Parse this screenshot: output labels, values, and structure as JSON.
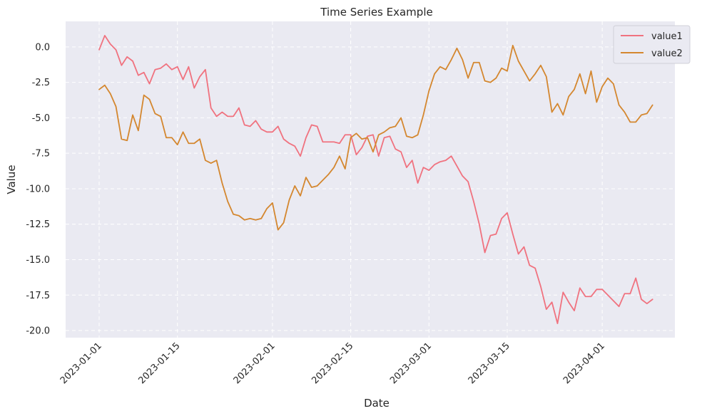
{
  "chart_data": {
    "type": "line",
    "title": "Time Series Example",
    "xlabel": "Date",
    "ylabel": "Value",
    "x_start": "2023-01-01",
    "x_end": "2023-04-09",
    "xlim": [
      "2022-12-26",
      "2023-04-14"
    ],
    "ylim": [
      -20.5,
      1.8
    ],
    "x_ticks": [
      "2023-01-01",
      "2023-01-15",
      "2023-02-01",
      "2023-02-15",
      "2023-03-01",
      "2023-03-15",
      "2023-04-01"
    ],
    "y_ticks": [
      0.0,
      -2.5,
      -5.0,
      -7.5,
      -10.0,
      -12.5,
      -15.0,
      -17.5,
      -20.0
    ],
    "y_tick_labels": [
      "0.0",
      "-2.5",
      "-5.0",
      "-7.5",
      "-10.0",
      "-12.5",
      "-15.0",
      "-17.5",
      "-20.0"
    ],
    "grid": true,
    "grid_style": "dashed",
    "background_color": "#eaeaf2",
    "legend_position": "top-right",
    "series": [
      {
        "name": "value1",
        "color": "#f0727f",
        "values": [
          -0.2,
          0.8,
          0.2,
          -0.2,
          -1.3,
          -0.7,
          -1.0,
          -2.0,
          -1.8,
          -2.6,
          -1.6,
          -1.5,
          -1.2,
          -1.6,
          -1.4,
          -2.3,
          -1.4,
          -2.9,
          -2.1,
          -1.6,
          -4.3,
          -4.9,
          -4.6,
          -4.9,
          -4.9,
          -4.3,
          -5.5,
          -5.6,
          -5.2,
          -5.8,
          -6.0,
          -6.0,
          -5.6,
          -6.5,
          -6.8,
          -7.0,
          -7.7,
          -6.4,
          -5.5,
          -5.6,
          -6.7,
          -6.7,
          -6.7,
          -6.8,
          -6.2,
          -6.2,
          -7.6,
          -7.1,
          -6.3,
          -6.2,
          -7.7,
          -6.4,
          -6.3,
          -7.2,
          -7.4,
          -8.5,
          -8.0,
          -9.6,
          -8.5,
          -8.7,
          -8.3,
          -8.1,
          -8.0,
          -7.7,
          -8.4,
          -9.1,
          -9.5,
          -10.9,
          -12.5,
          -14.5,
          -13.3,
          -13.2,
          -12.1,
          -11.7,
          -13.2,
          -14.6,
          -14.1,
          -15.4,
          -15.6,
          -16.9,
          -18.5,
          -18.0,
          -19.5,
          -17.3,
          -18.0,
          -18.6,
          -17.0,
          -17.6,
          -17.6,
          -17.1,
          -17.1,
          -17.5,
          -17.9,
          -18.3,
          -17.4,
          -17.4,
          -16.3,
          -17.8,
          -18.1,
          -17.8
        ]
      },
      {
        "name": "value2",
        "color": "#d4872f",
        "values": [
          -3.0,
          -2.7,
          -3.3,
          -4.2,
          -6.5,
          -6.6,
          -4.8,
          -5.9,
          -3.4,
          -3.7,
          -4.7,
          -4.9,
          -6.4,
          -6.4,
          -6.9,
          -6.0,
          -6.8,
          -6.8,
          -6.5,
          -8.0,
          -8.2,
          -8.0,
          -9.6,
          -10.9,
          -11.8,
          -11.9,
          -12.2,
          -12.1,
          -12.2,
          -12.1,
          -11.4,
          -11.0,
          -12.9,
          -12.4,
          -10.8,
          -9.8,
          -10.5,
          -9.2,
          -9.9,
          -9.8,
          -9.4,
          -9.0,
          -8.5,
          -7.7,
          -8.6,
          -6.4,
          -6.1,
          -6.5,
          -6.4,
          -7.4,
          -6.2,
          -6.0,
          -5.7,
          -5.6,
          -5.0,
          -6.3,
          -6.4,
          -6.2,
          -4.8,
          -3.1,
          -1.9,
          -1.4,
          -1.6,
          -0.9,
          -0.1,
          -0.9,
          -2.2,
          -1.1,
          -1.1,
          -2.4,
          -2.5,
          -2.2,
          -1.5,
          -1.7,
          0.1,
          -1.0,
          -1.7,
          -2.4,
          -1.9,
          -1.3,
          -2.1,
          -4.6,
          -4.0,
          -4.8,
          -3.5,
          -3.0,
          -1.9,
          -3.3,
          -1.7,
          -3.9,
          -2.8,
          -2.2,
          -2.6,
          -4.1,
          -4.6,
          -5.3,
          -5.3,
          -4.8,
          -4.7,
          -4.1
        ]
      }
    ]
  }
}
